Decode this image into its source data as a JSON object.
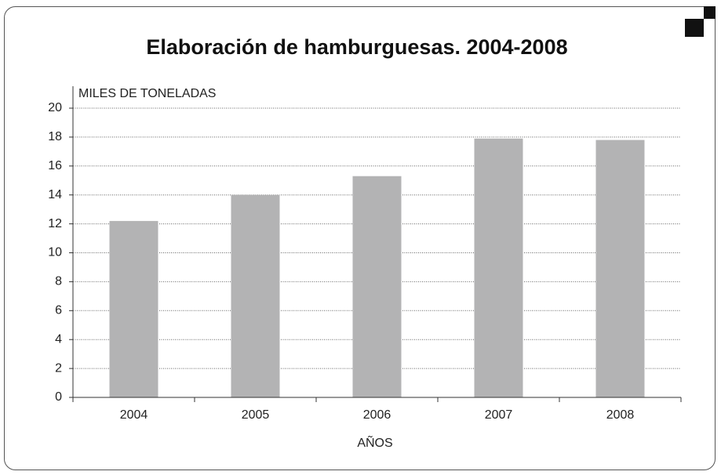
{
  "chart_data": {
    "type": "bar",
    "title": "Elaboración de hamburguesas. 2004-2008",
    "y_label": "MILES DE TONELADAS",
    "x_label": "AÑOS",
    "categories": [
      "2004",
      "2005",
      "2006",
      "2007",
      "2008"
    ],
    "values": [
      12.2,
      14.0,
      15.3,
      17.9,
      17.8
    ],
    "color": "#b3b3b4",
    "ylim": [
      0,
      20
    ],
    "yticks": [
      0,
      2,
      4,
      6,
      8,
      10,
      12,
      14,
      16,
      18,
      20
    ],
    "grid": true
  }
}
